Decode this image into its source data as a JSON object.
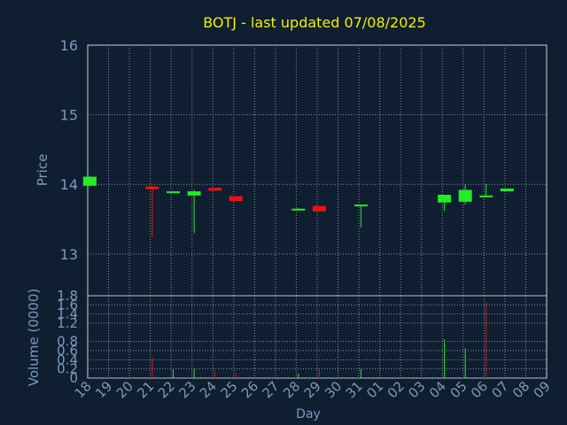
{
  "chart_data": [
    {
      "type": "candlestick",
      "title": "BOTJ - last updated 07/08/2025",
      "ylabel": "Price",
      "xlabel": "",
      "ylim": [
        12.4,
        16
      ],
      "yticks": [
        13,
        14,
        15,
        16
      ],
      "grid": true,
      "x": [
        "18",
        "19",
        "20",
        "21",
        "22",
        "23",
        "24",
        "25",
        "26",
        "27",
        "28",
        "29",
        "30",
        "31",
        "01",
        "02",
        "03",
        "04",
        "05",
        "06",
        "07",
        "08",
        "09"
      ],
      "candles": [
        {
          "x": "18",
          "open": 13.98,
          "close": 14.11,
          "high": 14.12,
          "low": 13.97
        },
        {
          "x": "21",
          "open": 13.97,
          "close": 13.93,
          "high": 13.98,
          "low": 13.24
        },
        {
          "x": "22",
          "open": 13.89,
          "close": 13.9,
          "high": 13.9,
          "low": 13.89
        },
        {
          "x": "23",
          "open": 13.84,
          "close": 13.9,
          "high": 13.92,
          "low": 13.3
        },
        {
          "x": "24",
          "open": 13.95,
          "close": 13.91,
          "high": 13.95,
          "low": 13.91
        },
        {
          "x": "25",
          "open": 13.83,
          "close": 13.76,
          "high": 13.83,
          "low": 13.76
        },
        {
          "x": "28",
          "open": 13.64,
          "close": 13.65,
          "high": 13.66,
          "low": 13.63
        },
        {
          "x": "29",
          "open": 13.69,
          "close": 13.61,
          "high": 13.69,
          "low": 13.61
        },
        {
          "x": "31",
          "open": 13.7,
          "close": 13.71,
          "high": 13.71,
          "low": 13.38
        },
        {
          "x": "04",
          "open": 13.74,
          "close": 13.85,
          "high": 13.85,
          "low": 13.62
        },
        {
          "x": "05",
          "open": 13.75,
          "close": 13.92,
          "high": 14.0,
          "low": 13.71
        },
        {
          "x": "06",
          "open": 13.84,
          "close": 13.84,
          "high": 14.0,
          "low": 13.84
        },
        {
          "x": "07",
          "open": 13.9,
          "close": 13.94,
          "high": 13.94,
          "low": 13.9
        }
      ]
    },
    {
      "type": "bar",
      "ylabel": "Volume (0000)",
      "xlabel": "Day",
      "ylim": [
        0,
        1.8
      ],
      "yticks": [
        "0",
        "0.2",
        "0.4",
        "0.6",
        "0.8",
        "1.2",
        "1.4",
        "1.6",
        "1.8"
      ],
      "ytick_values": [
        0,
        0.2,
        0.4,
        0.6,
        0.8,
        1.2,
        1.4,
        1.6,
        1.8
      ],
      "grid": true,
      "bars": [
        {
          "x": "18",
          "value": 0.02,
          "color": "green"
        },
        {
          "x": "21",
          "value": 0.45,
          "color": "red"
        },
        {
          "x": "22",
          "value": 0.2,
          "color": "green"
        },
        {
          "x": "23",
          "value": 0.2,
          "color": "green"
        },
        {
          "x": "24",
          "value": 0.16,
          "color": "red"
        },
        {
          "x": "25",
          "value": 0.12,
          "color": "red"
        },
        {
          "x": "28",
          "value": 0.1,
          "color": "green"
        },
        {
          "x": "29",
          "value": 0.2,
          "color": "red"
        },
        {
          "x": "31",
          "value": 0.2,
          "color": "green"
        },
        {
          "x": "04",
          "value": 0.85,
          "color": "green"
        },
        {
          "x": "05",
          "value": 0.65,
          "color": "green"
        },
        {
          "x": "06",
          "value": 1.65,
          "color": "red"
        },
        {
          "x": "07",
          "value": 0.02,
          "color": "green"
        }
      ]
    }
  ],
  "colors": {
    "background": "#0f1e30",
    "axis": "#c8d2e0",
    "grid": "#8a95a8",
    "tick_text": "#7a9ac0",
    "title": "#f4f000",
    "up": "#22ee22",
    "down": "#ee1111"
  }
}
